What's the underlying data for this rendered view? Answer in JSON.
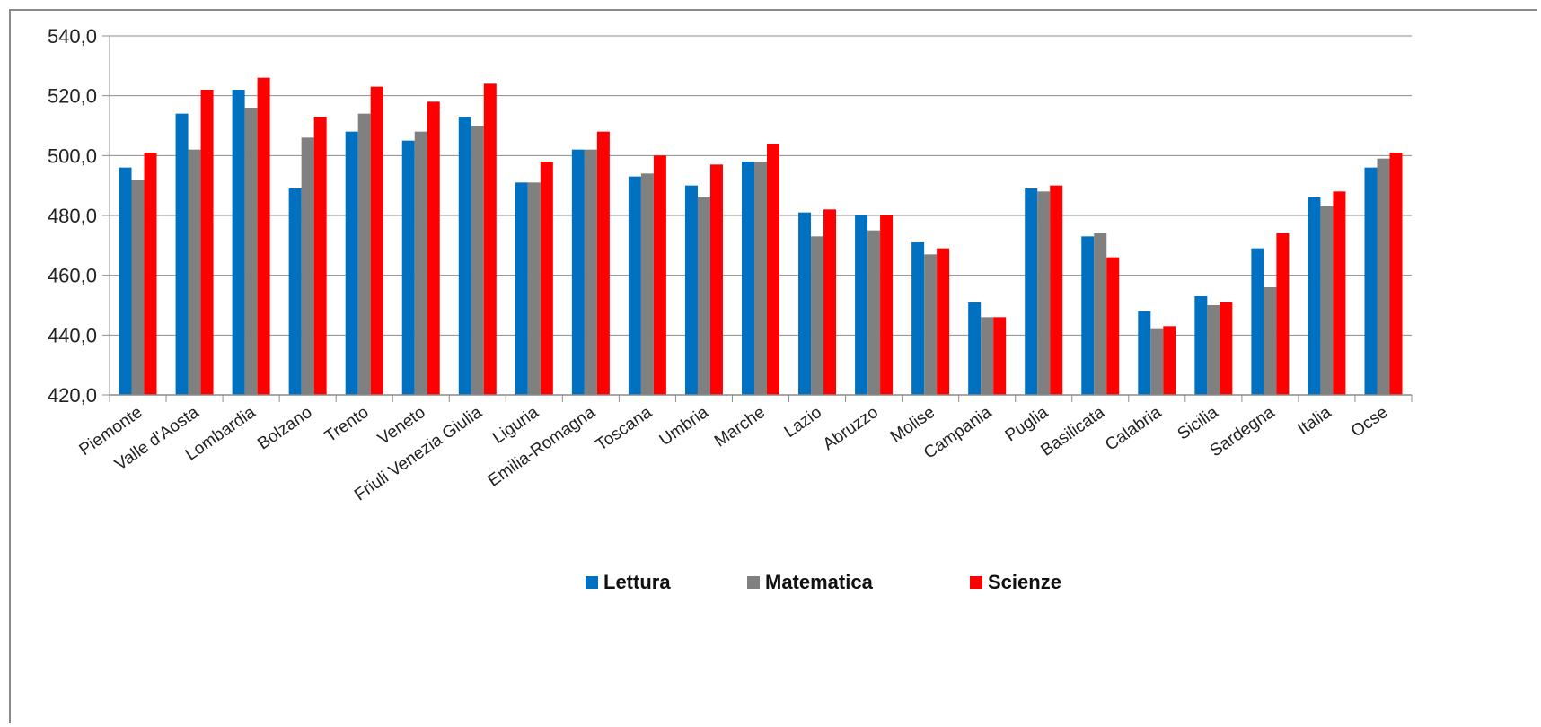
{
  "chart_data": {
    "type": "bar",
    "title": "",
    "xlabel": "",
    "ylabel": "",
    "ylim": [
      420,
      540
    ],
    "yticks": [
      "420,0",
      "440,0",
      "460,0",
      "480,0",
      "500,0",
      "520,0",
      "540,0"
    ],
    "ytick_values": [
      420,
      440,
      460,
      480,
      500,
      520,
      540
    ],
    "grid": "horizontal",
    "legend_position": "bottom-center",
    "categories": [
      "Piemonte",
      "Valle d'Aosta",
      "Lombardia",
      "Bolzano",
      "Trento",
      "Veneto",
      "Friuli Venezia Giulia",
      "Liguria",
      "Emilia-Romagna",
      "Toscana",
      "Umbria",
      "Marche",
      "Lazio",
      "Abruzzo",
      "Molise",
      "Campania",
      "Puglia",
      "Basilicata",
      "Calabria",
      "Sicilia",
      "Sardegna",
      "Italia",
      "Ocse"
    ],
    "series": [
      {
        "name": "Lettura",
        "color": "#0070c0",
        "values": [
          496,
          514,
          522,
          489,
          508,
          505,
          513,
          491,
          502,
          493,
          490,
          498,
          481,
          480,
          471,
          451,
          489,
          473,
          448,
          453,
          469,
          486,
          496
        ]
      },
      {
        "name": "Matematica",
        "color": "#808080",
        "values": [
          492,
          502,
          516,
          506,
          514,
          508,
          510,
          491,
          502,
          494,
          486,
          498,
          473,
          475,
          467,
          446,
          488,
          474,
          442,
          450,
          456,
          483,
          499
        ]
      },
      {
        "name": "Scienze",
        "color": "#ff0000",
        "values": [
          501,
          522,
          526,
          513,
          523,
          518,
          524,
          498,
          508,
          500,
          497,
          504,
          482,
          480,
          469,
          446,
          490,
          466,
          443,
          451,
          474,
          488,
          501
        ]
      }
    ]
  }
}
